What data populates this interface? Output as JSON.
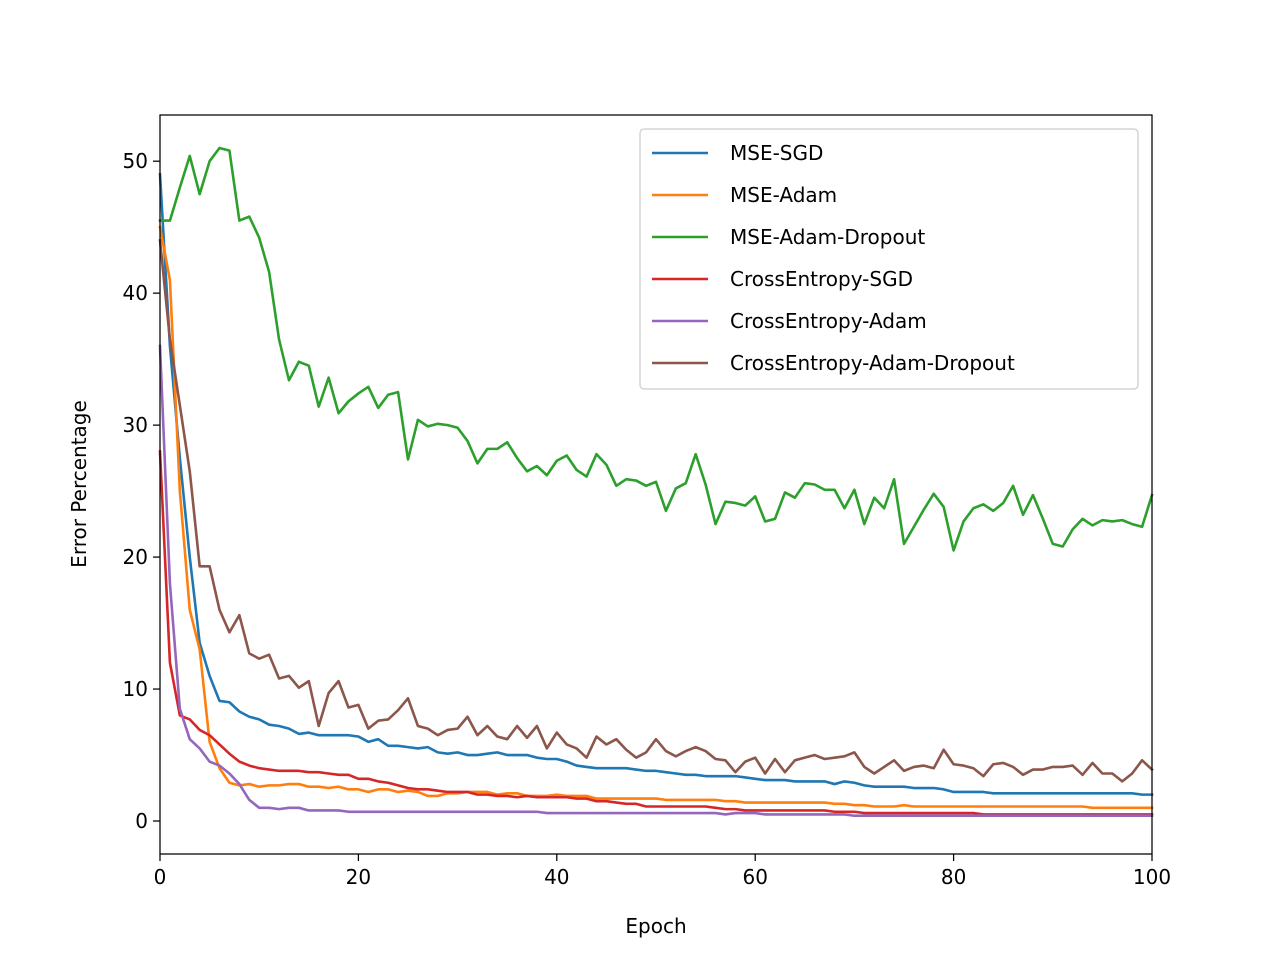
{
  "chart_data": {
    "type": "line",
    "xlabel": "Epoch",
    "ylabel": "Error Percentage",
    "xlim": [
      0,
      100
    ],
    "ylim": [
      -2.5,
      53.5
    ],
    "xticks": [
      0,
      20,
      40,
      60,
      80,
      100
    ],
    "yticks": [
      0,
      10,
      20,
      30,
      40,
      50
    ],
    "grid": false,
    "legend_position": "top-right",
    "series": [
      {
        "name": "MSE-SGD",
        "color": "#1f77b4",
        "values": [
          49.0,
          36.0,
          27.5,
          20.0,
          13.5,
          11.0,
          9.1,
          9.0,
          8.3,
          7.9,
          7.7,
          7.3,
          7.2,
          7.0,
          6.6,
          6.7,
          6.5,
          6.5,
          6.5,
          6.5,
          6.4,
          6.0,
          6.2,
          5.7,
          5.7,
          5.6,
          5.5,
          5.6,
          5.2,
          5.1,
          5.2,
          5.0,
          5.0,
          5.1,
          5.2,
          5.0,
          5.0,
          5.0,
          4.8,
          4.7,
          4.7,
          4.5,
          4.2,
          4.1,
          4.0,
          4.0,
          4.0,
          4.0,
          3.9,
          3.8,
          3.8,
          3.7,
          3.6,
          3.5,
          3.5,
          3.4,
          3.4,
          3.4,
          3.4,
          3.3,
          3.2,
          3.1,
          3.1,
          3.1,
          3.0,
          3.0,
          3.0,
          3.0,
          2.8,
          3.0,
          2.9,
          2.7,
          2.6,
          2.6,
          2.6,
          2.6,
          2.5,
          2.5,
          2.5,
          2.4,
          2.2,
          2.2,
          2.2,
          2.2,
          2.1,
          2.1,
          2.1,
          2.1,
          2.1,
          2.1,
          2.1,
          2.1,
          2.1,
          2.1,
          2.1,
          2.1,
          2.1,
          2.1,
          2.1,
          2.0,
          2.0
        ]
      },
      {
        "name": "MSE-Adam",
        "color": "#ff7f0e",
        "values": [
          45.0,
          41.0,
          25.0,
          16.0,
          13.0,
          6.0,
          4.0,
          2.9,
          2.7,
          2.8,
          2.6,
          2.7,
          2.7,
          2.8,
          2.8,
          2.6,
          2.6,
          2.5,
          2.6,
          2.4,
          2.4,
          2.2,
          2.4,
          2.4,
          2.2,
          2.3,
          2.2,
          1.9,
          1.9,
          2.1,
          2.1,
          2.2,
          2.2,
          2.2,
          2.0,
          2.1,
          2.1,
          1.9,
          1.9,
          1.9,
          2.0,
          1.9,
          1.9,
          1.9,
          1.7,
          1.7,
          1.7,
          1.7,
          1.7,
          1.7,
          1.7,
          1.6,
          1.6,
          1.6,
          1.6,
          1.6,
          1.6,
          1.5,
          1.5,
          1.4,
          1.4,
          1.4,
          1.4,
          1.4,
          1.4,
          1.4,
          1.4,
          1.4,
          1.3,
          1.3,
          1.2,
          1.2,
          1.1,
          1.1,
          1.1,
          1.2,
          1.1,
          1.1,
          1.1,
          1.1,
          1.1,
          1.1,
          1.1,
          1.1,
          1.1,
          1.1,
          1.1,
          1.1,
          1.1,
          1.1,
          1.1,
          1.1,
          1.1,
          1.1,
          1.0,
          1.0,
          1.0,
          1.0,
          1.0,
          1.0,
          1.0
        ]
      },
      {
        "name": "MSE-Adam-Dropout",
        "color": "#2ca02c",
        "values": [
          45.5,
          45.5,
          48.0,
          50.4,
          47.5,
          50.0,
          51.0,
          50.8,
          45.5,
          45.8,
          44.2,
          41.6,
          36.5,
          33.4,
          34.8,
          34.5,
          31.4,
          33.6,
          30.9,
          31.8,
          32.4,
          32.9,
          31.3,
          32.3,
          32.5,
          27.4,
          30.4,
          29.9,
          30.1,
          30.0,
          29.8,
          28.8,
          27.1,
          28.2,
          28.2,
          28.7,
          27.5,
          26.5,
          26.9,
          26.2,
          27.3,
          27.7,
          26.6,
          26.1,
          27.8,
          27.0,
          25.4,
          25.9,
          25.8,
          25.4,
          25.7,
          23.5,
          25.2,
          25.6,
          27.8,
          25.5,
          22.5,
          24.2,
          24.1,
          23.9,
          24.6,
          22.7,
          22.9,
          24.9,
          24.5,
          25.6,
          25.5,
          25.1,
          25.1,
          23.7,
          25.1,
          22.5,
          24.5,
          23.7,
          25.9,
          21.0,
          22.3,
          23.6,
          24.8,
          23.8,
          20.5,
          22.7,
          23.7,
          24.0,
          23.5,
          24.1,
          25.4,
          23.2,
          24.7,
          22.9,
          21.0,
          20.8,
          22.1,
          22.9,
          22.4,
          22.8,
          22.7,
          22.8,
          22.5,
          22.3,
          24.7
        ]
      },
      {
        "name": "CrossEntropy-SGD",
        "color": "#d62728",
        "values": [
          28.0,
          12.0,
          8.0,
          7.7,
          6.9,
          6.5,
          5.8,
          5.1,
          4.5,
          4.2,
          4.0,
          3.9,
          3.8,
          3.8,
          3.8,
          3.7,
          3.7,
          3.6,
          3.5,
          3.5,
          3.2,
          3.2,
          3.0,
          2.9,
          2.7,
          2.5,
          2.4,
          2.4,
          2.3,
          2.2,
          2.2,
          2.2,
          2.0,
          2.0,
          1.9,
          1.9,
          1.8,
          1.9,
          1.8,
          1.8,
          1.8,
          1.8,
          1.7,
          1.7,
          1.5,
          1.5,
          1.4,
          1.3,
          1.3,
          1.1,
          1.1,
          1.1,
          1.1,
          1.1,
          1.1,
          1.1,
          1.0,
          0.9,
          0.9,
          0.8,
          0.8,
          0.8,
          0.8,
          0.8,
          0.8,
          0.8,
          0.8,
          0.8,
          0.7,
          0.7,
          0.7,
          0.6,
          0.6,
          0.6,
          0.6,
          0.6,
          0.6,
          0.6,
          0.6,
          0.6,
          0.6,
          0.6,
          0.6,
          0.5,
          0.5,
          0.5,
          0.5,
          0.5,
          0.5,
          0.5,
          0.5,
          0.5,
          0.5,
          0.5,
          0.5,
          0.5,
          0.5,
          0.5,
          0.5,
          0.5,
          0.5
        ]
      },
      {
        "name": "CrossEntropy-Adam",
        "color": "#9467bd",
        "values": [
          36.0,
          18.0,
          8.5,
          6.2,
          5.5,
          4.5,
          4.2,
          3.6,
          2.8,
          1.6,
          1.0,
          1.0,
          0.9,
          1.0,
          1.0,
          0.8,
          0.8,
          0.8,
          0.8,
          0.7,
          0.7,
          0.7,
          0.7,
          0.7,
          0.7,
          0.7,
          0.7,
          0.7,
          0.7,
          0.7,
          0.7,
          0.7,
          0.7,
          0.7,
          0.7,
          0.7,
          0.7,
          0.7,
          0.7,
          0.6,
          0.6,
          0.6,
          0.6,
          0.6,
          0.6,
          0.6,
          0.6,
          0.6,
          0.6,
          0.6,
          0.6,
          0.6,
          0.6,
          0.6,
          0.6,
          0.6,
          0.6,
          0.5,
          0.6,
          0.6,
          0.6,
          0.5,
          0.5,
          0.5,
          0.5,
          0.5,
          0.5,
          0.5,
          0.5,
          0.5,
          0.4,
          0.4,
          0.4,
          0.4,
          0.4,
          0.4,
          0.4,
          0.4,
          0.4,
          0.4,
          0.4,
          0.4,
          0.4,
          0.4,
          0.4,
          0.4,
          0.4,
          0.4,
          0.4,
          0.4,
          0.4,
          0.4,
          0.4,
          0.4,
          0.4,
          0.4,
          0.4,
          0.4,
          0.4,
          0.4,
          0.4
        ]
      },
      {
        "name": "CrossEntropy-Adam-Dropout",
        "color": "#8c564b",
        "values": [
          44.0,
          36.5,
          31.5,
          26.5,
          19.3,
          19.3,
          16.0,
          14.3,
          15.6,
          12.7,
          12.3,
          12.6,
          10.8,
          11.0,
          10.1,
          10.6,
          7.2,
          9.7,
          10.6,
          8.6,
          8.8,
          7.0,
          7.6,
          7.7,
          8.4,
          9.3,
          7.2,
          7.0,
          6.5,
          6.9,
          7.0,
          7.9,
          6.5,
          7.2,
          6.4,
          6.2,
          7.2,
          6.3,
          7.2,
          5.5,
          6.7,
          5.8,
          5.5,
          4.8,
          6.4,
          5.8,
          6.2,
          5.4,
          4.8,
          5.2,
          6.2,
          5.3,
          4.9,
          5.3,
          5.6,
          5.3,
          4.7,
          4.6,
          3.7,
          4.5,
          4.8,
          3.6,
          4.7,
          3.7,
          4.6,
          4.8,
          5.0,
          4.7,
          4.8,
          4.9,
          5.2,
          4.1,
          3.6,
          4.1,
          4.6,
          3.8,
          4.1,
          4.2,
          4.0,
          5.4,
          4.3,
          4.2,
          4.0,
          3.4,
          4.3,
          4.4,
          4.1,
          3.5,
          3.9,
          3.9,
          4.1,
          4.1,
          4.2,
          3.5,
          4.4,
          3.6,
          3.6,
          3.0,
          3.6,
          4.6,
          3.9
        ]
      }
    ]
  }
}
